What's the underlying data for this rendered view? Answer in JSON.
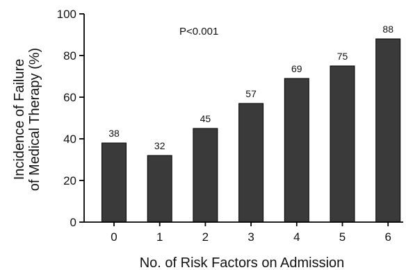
{
  "chart_data": {
    "type": "bar",
    "categories": [
      "0",
      "1",
      "2",
      "3",
      "4",
      "5",
      "6"
    ],
    "values": [
      38,
      32,
      45,
      57,
      69,
      75,
      88
    ],
    "data_labels": [
      "38",
      "32",
      "45",
      "57",
      "69",
      "75",
      "88"
    ],
    "title": "",
    "xlabel": "No. of Risk Factors on Admission",
    "ylabel_lines": [
      "Incidence of Failure",
      "of Medical Therapy (%)"
    ],
    "ylim": [
      0,
      100
    ],
    "yticks": [
      0,
      20,
      40,
      60,
      80,
      100
    ],
    "ytick_labels": [
      "0",
      "20",
      "40",
      "60",
      "80",
      "100"
    ],
    "annotation": "P<0.001",
    "grid": false,
    "legend": "none",
    "bar_color": "#3a3a3a",
    "bar_edge_color": "#000000"
  }
}
